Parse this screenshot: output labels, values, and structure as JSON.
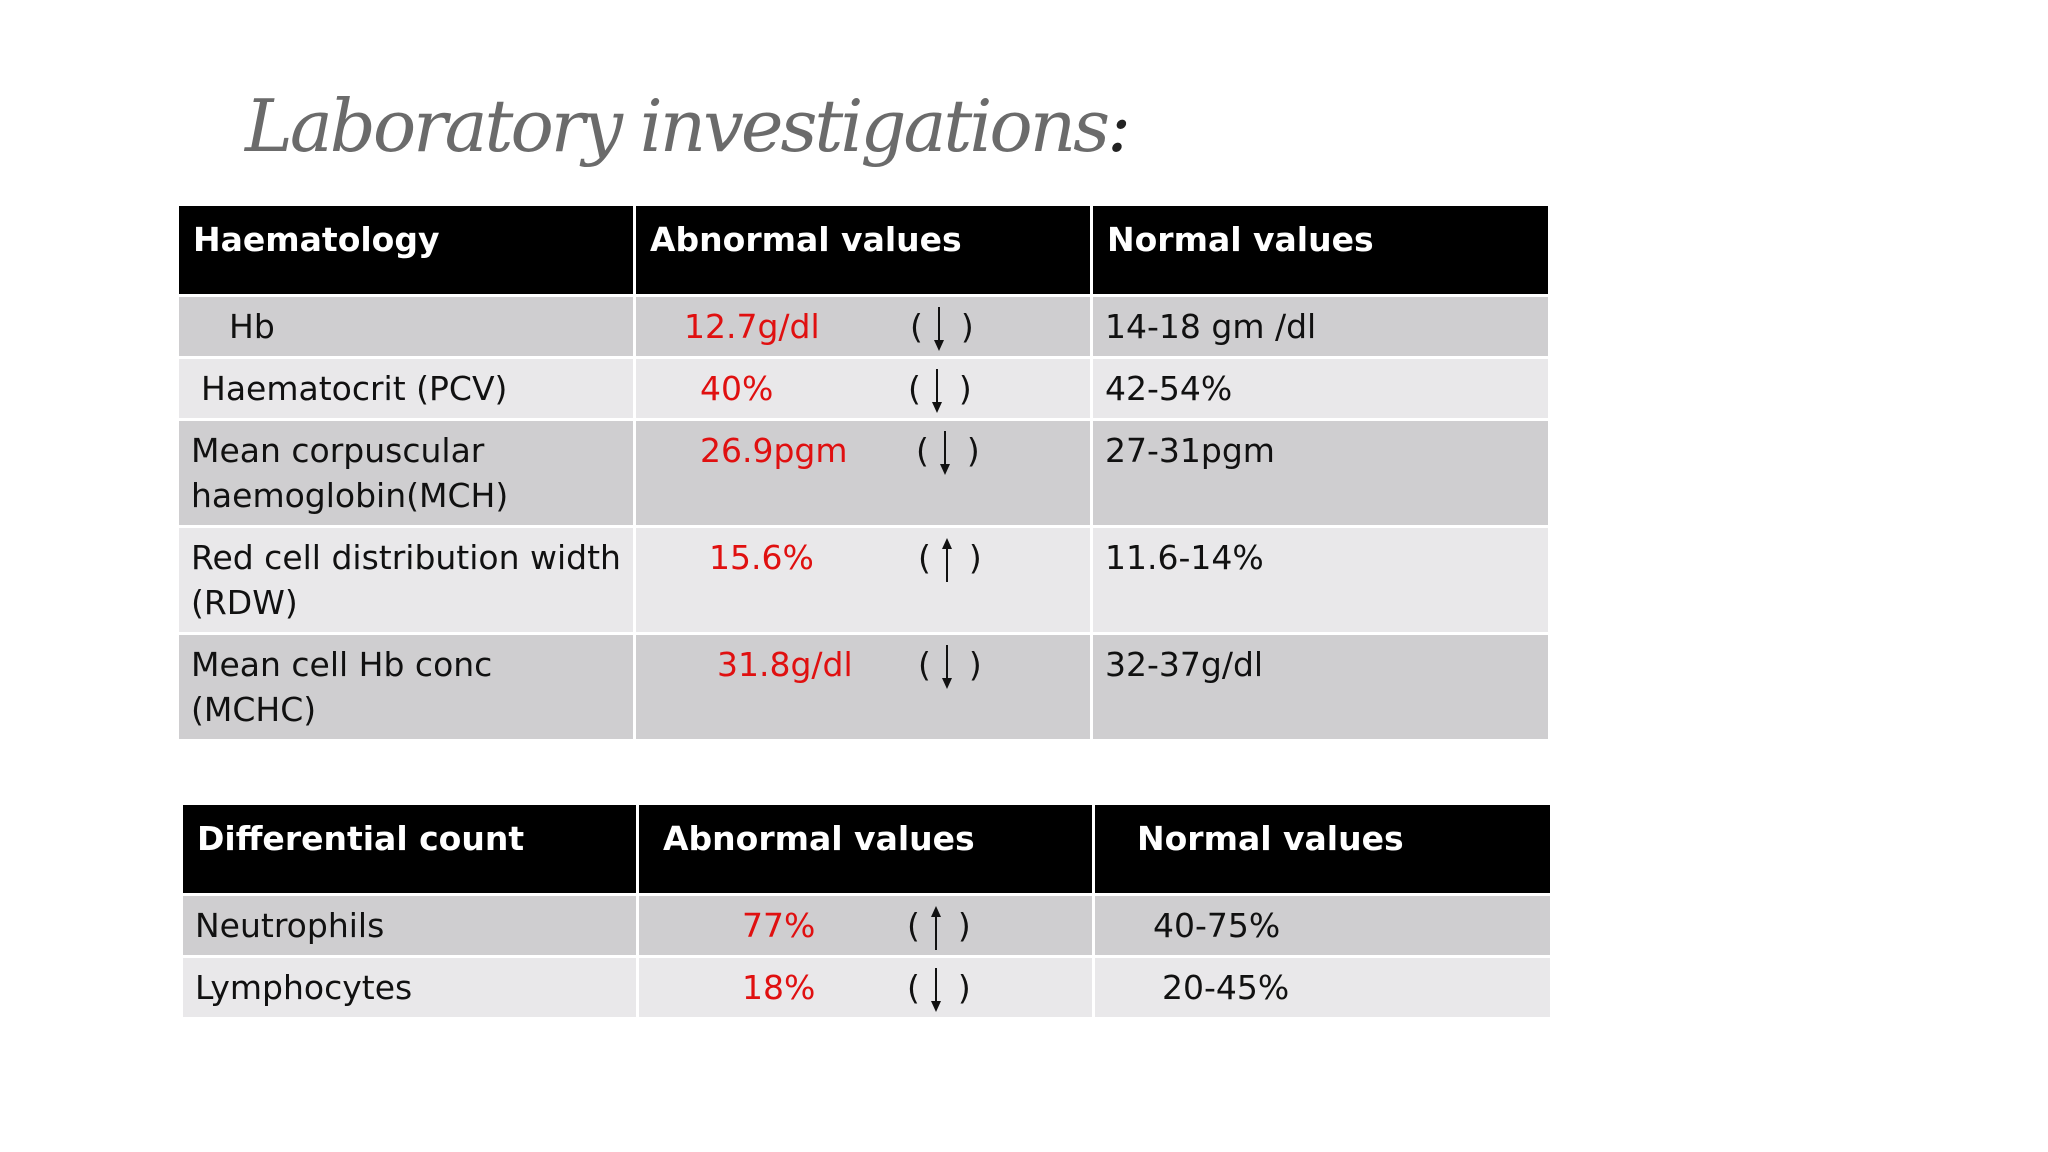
{
  "slide": {
    "title": "Laboratory investigations",
    "title_suffix": ":"
  },
  "haematology": {
    "headers": [
      "Haematology",
      "Abnormal values",
      "Normal values"
    ],
    "rows": [
      {
        "test": "Hb",
        "abnormal": "12.7g/dl",
        "trend": "down",
        "normal": "14-18 gm /dl"
      },
      {
        "test": "Haematocrit (PCV)",
        "abnormal": "40%",
        "trend": "down",
        "normal": "42-54%"
      },
      {
        "test": "Mean corpuscular haemoglobin(MCH)",
        "abnormal": "26.9pgm",
        "trend": "down",
        "normal": "27-31pgm"
      },
      {
        "test": "Red cell distribution width (RDW)",
        "abnormal": "15.6%",
        "trend": "up",
        "normal": "11.6-14%"
      },
      {
        "test": "Mean cell Hb conc (MCHC)",
        "abnormal": "31.8g/dl",
        "trend": "down",
        "normal": "32-37g/dl"
      }
    ]
  },
  "differential": {
    "headers": [
      "Differential count",
      "Abnormal values",
      "Normal values"
    ],
    "rows": [
      {
        "test": "Neutrophils",
        "abnormal": "77%",
        "trend": "up",
        "normal": "40-75%"
      },
      {
        "test": "Lymphocytes",
        "abnormal": "18%",
        "trend": "down",
        "normal": "20-45%"
      }
    ]
  },
  "colors": {
    "header_bg": "#000000",
    "header_text": "#ffffff",
    "row_dark": "#cfced0",
    "row_light": "#e9e8ea",
    "abnormal_value": "#e01010",
    "title": "#6b6b6b"
  },
  "icons": {
    "down": "arrow-down-icon",
    "up": "arrow-up-icon"
  }
}
